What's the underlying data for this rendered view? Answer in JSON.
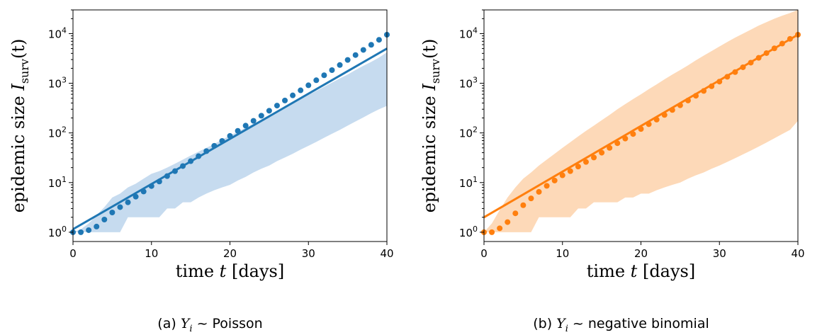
{
  "chart_data": [
    {
      "type": "line",
      "caption": {
        "prefix": "(a)",
        "var": "Y",
        "sub": "i",
        "rel": "~",
        "dist": "Poisson"
      },
      "xlabel": {
        "text": "time",
        "var": "t",
        "unit": "[days]"
      },
      "ylabel": {
        "text": "epidemic size",
        "var": "I",
        "sub": "surv",
        "arg": "(t)"
      },
      "xscale": "linear",
      "yscale": "log",
      "xlim": [
        0,
        40
      ],
      "ylim": [
        0.65,
        30000
      ],
      "xticks": [
        "0",
        "10",
        "20",
        "30",
        "40"
      ],
      "yticks": [
        {
          "value": 1,
          "base": "10",
          "exp": "0"
        },
        {
          "value": 10,
          "base": "10",
          "exp": "1"
        },
        {
          "value": 100,
          "base": "10",
          "exp": "2"
        },
        {
          "value": 1000,
          "base": "10",
          "exp": "3"
        },
        {
          "value": 10000,
          "base": "10",
          "exp": "4"
        }
      ],
      "color": "#1f77b4",
      "band_color": "#c6dbef",
      "grid": false,
      "series": [
        {
          "kind": "line",
          "x": [
            0,
            40
          ],
          "y": [
            1.15,
            5000
          ]
        },
        {
          "kind": "points",
          "x": [
            0,
            1,
            2,
            3,
            4,
            5,
            6,
            7,
            8,
            9,
            10,
            11,
            12,
            13,
            14,
            15,
            16,
            17,
            18,
            19,
            20,
            21,
            22,
            23,
            24,
            25,
            26,
            27,
            28,
            29,
            30,
            31,
            32,
            33,
            34,
            35,
            36,
            37,
            38,
            39,
            40
          ],
          "y": [
            1.0,
            1.0,
            1.1,
            1.3,
            1.8,
            2.5,
            3.2,
            4.0,
            5.2,
            6.6,
            8.5,
            10.5,
            13.5,
            17,
            21.5,
            27,
            34,
            43,
            55,
            69,
            87,
            110,
            140,
            175,
            222,
            280,
            355,
            450,
            570,
            720,
            910,
            1150,
            1450,
            1840,
            2330,
            2950,
            3700,
            4700,
            5950,
            7500,
            9500
          ]
        },
        {
          "kind": "band",
          "x": [
            0,
            1,
            2,
            3,
            4,
            5,
            6,
            7,
            8,
            9,
            10,
            11,
            12,
            13,
            14,
            15,
            16,
            17,
            18,
            19,
            20,
            21,
            22,
            23,
            24,
            25,
            26,
            27,
            28,
            29,
            30,
            31,
            32,
            33,
            34,
            35,
            36,
            37,
            38,
            39,
            40
          ],
          "upper": [
            1.0,
            1.15,
            1.5,
            2.2,
            3.2,
            5.0,
            6.0,
            8.0,
            9.5,
            12,
            15,
            17,
            20,
            24,
            29,
            35,
            42,
            50,
            60,
            73,
            88,
            105,
            128,
            153,
            185,
            225,
            270,
            330,
            400,
            480,
            580,
            700,
            850,
            1030,
            1250,
            1500,
            1850,
            2250,
            2700,
            3300,
            4200
          ],
          "lower": [
            1.0,
            1.0,
            1.0,
            1.0,
            1.0,
            1.0,
            1.0,
            2.0,
            2.0,
            2.0,
            2.0,
            2.0,
            3.0,
            3.0,
            4.0,
            4.0,
            5.0,
            6.0,
            7.0,
            8.0,
            9.0,
            11,
            13,
            16,
            19,
            22,
            27,
            32,
            38,
            46,
            55,
            66,
            80,
            96,
            115,
            140,
            170,
            205,
            250,
            300,
            350
          ]
        }
      ]
    },
    {
      "type": "line",
      "caption": {
        "prefix": "(b)",
        "var": "Y",
        "sub": "i",
        "rel": "~",
        "dist": "negative binomial"
      },
      "xlabel": {
        "text": "time",
        "var": "t",
        "unit": "[days]"
      },
      "ylabel": {
        "text": "epidemic size",
        "var": "I",
        "sub": "surv",
        "arg": "(t)"
      },
      "xscale": "linear",
      "yscale": "log",
      "xlim": [
        0,
        40
      ],
      "ylim": [
        0.65,
        30000
      ],
      "xticks": [
        "0",
        "10",
        "20",
        "30",
        "40"
      ],
      "yticks": [
        {
          "value": 1,
          "base": "10",
          "exp": "0"
        },
        {
          "value": 10,
          "base": "10",
          "exp": "1"
        },
        {
          "value": 100,
          "base": "10",
          "exp": "2"
        },
        {
          "value": 1000,
          "base": "10",
          "exp": "3"
        },
        {
          "value": 10000,
          "base": "10",
          "exp": "4"
        }
      ],
      "color": "#ff7f0e",
      "band_color": "#fdd9b8",
      "grid": false,
      "series": [
        {
          "kind": "line",
          "x": [
            0,
            40
          ],
          "y": [
            2.0,
            9500
          ]
        },
        {
          "kind": "points",
          "x": [
            0,
            1,
            2,
            3,
            4,
            5,
            6,
            7,
            8,
            9,
            10,
            11,
            12,
            13,
            14,
            15,
            16,
            17,
            18,
            19,
            20,
            21,
            22,
            23,
            24,
            25,
            26,
            27,
            28,
            29,
            30,
            31,
            32,
            33,
            34,
            35,
            36,
            37,
            38,
            39,
            40
          ],
          "y": [
            1.0,
            1.0,
            1.2,
            1.6,
            2.4,
            3.5,
            4.8,
            6.5,
            8.6,
            11,
            14,
            17,
            21,
            26,
            32,
            40,
            50,
            62,
            77,
            95,
            120,
            150,
            185,
            230,
            290,
            360,
            450,
            560,
            700,
            870,
            1080,
            1350,
            1680,
            2100,
            2600,
            3250,
            4050,
            5050,
            6300,
            7850,
            9500
          ]
        },
        {
          "kind": "band",
          "x": [
            0,
            1,
            2,
            3,
            4,
            5,
            6,
            7,
            8,
            9,
            10,
            11,
            12,
            13,
            14,
            15,
            16,
            17,
            18,
            19,
            20,
            21,
            22,
            23,
            24,
            25,
            26,
            27,
            28,
            29,
            30,
            31,
            32,
            33,
            34,
            35,
            36,
            37,
            38,
            39,
            40
          ],
          "upper": [
            1.0,
            1.5,
            2.8,
            5,
            8,
            12,
            16,
            22,
            29,
            38,
            50,
            65,
            85,
            110,
            140,
            180,
            230,
            300,
            380,
            480,
            600,
            760,
            950,
            1200,
            1500,
            1850,
            2300,
            2900,
            3600,
            4450,
            5500,
            6800,
            8300,
            10000,
            12000,
            14500,
            17000,
            20000,
            23000,
            26000,
            30000
          ],
          "lower": [
            1.0,
            1.0,
            1.0,
            1.0,
            1.0,
            1.0,
            1.0,
            2.0,
            2.0,
            2.0,
            2.0,
            2.0,
            3.0,
            3.0,
            4.0,
            4.0,
            4.0,
            4.0,
            5.0,
            5.0,
            6.0,
            6.0,
            7.0,
            8.0,
            9.0,
            10,
            12,
            14,
            16,
            19,
            22,
            26,
            31,
            37,
            44,
            53,
            64,
            78,
            95,
            115,
            175
          ]
        }
      ]
    }
  ]
}
